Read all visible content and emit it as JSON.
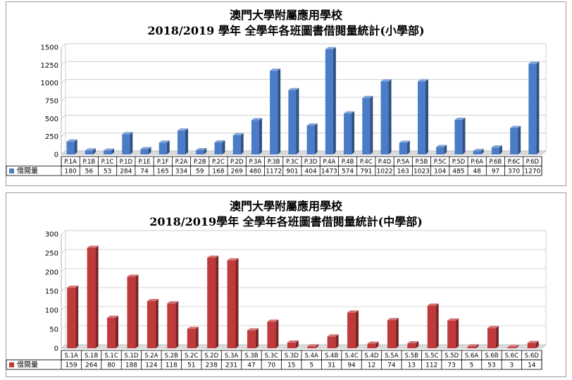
{
  "chart_data": [
    {
      "type": "bar",
      "title": "澳門大學附屬應用學校",
      "subtitle": "2018/2019 學年  全學年各班圖書借閱量統計(小學部)",
      "series": [
        {
          "name": "借閱量",
          "color": "#4a7cc7",
          "values": [
            180,
            56,
            53,
            284,
            74,
            165,
            334,
            59,
            168,
            269,
            480,
            1172,
            901,
            404,
            1473,
            574,
            791,
            1022,
            163,
            1023,
            104,
            485,
            48,
            97,
            370,
            1270
          ]
        }
      ],
      "categories": [
        "P.1A",
        "P.1B",
        "P.1C",
        "P.1D",
        "P.1E",
        "P.1F",
        "P.2A",
        "P.2B",
        "P.2C",
        "P.2D",
        "P.3A",
        "P.3B",
        "P.3C",
        "P.3D",
        "P.4A",
        "P.4B",
        "P.4C",
        "P.4D",
        "P.5A",
        "P.5B",
        "P.5C",
        "P.5D",
        "P.6A",
        "P.6B",
        "P.6C",
        "P.6D"
      ],
      "yticks": [
        0,
        250,
        500,
        750,
        1000,
        1250,
        1500
      ],
      "ylim": [
        0,
        1500
      ],
      "grid": true,
      "legend": "data-table"
    },
    {
      "type": "bar",
      "title": "澳門大學附屬應用學校",
      "subtitle": "2018/2019學年  全學年各班圖書借閱量統計(中學部)",
      "series": [
        {
          "name": "借閱量",
          "color": "#c0393b",
          "values": [
            159,
            264,
            80,
            188,
            124,
            118,
            51,
            238,
            231,
            47,
            70,
            15,
            5,
            31,
            94,
            12,
            74,
            13,
            112,
            73,
            5,
            53,
            3,
            14
          ]
        }
      ],
      "categories": [
        "S.1A",
        "S.1B",
        "S.1C",
        "S.1D",
        "S.2A",
        "S.2B",
        "S.2C",
        "S.2D",
        "S.3A",
        "S.3B",
        "S.3C",
        "S.3D",
        "S.4A",
        "S.4B",
        "S.4C",
        "S.4D",
        "S.5A",
        "S.5B",
        "S.5C",
        "S.5D",
        "S.6A",
        "S.6B",
        "S.6C",
        "S.6D"
      ],
      "yticks": [
        0,
        50,
        100,
        150,
        200,
        250,
        300
      ],
      "ylim": [
        0,
        300
      ],
      "grid": true,
      "legend": "data-table"
    }
  ]
}
